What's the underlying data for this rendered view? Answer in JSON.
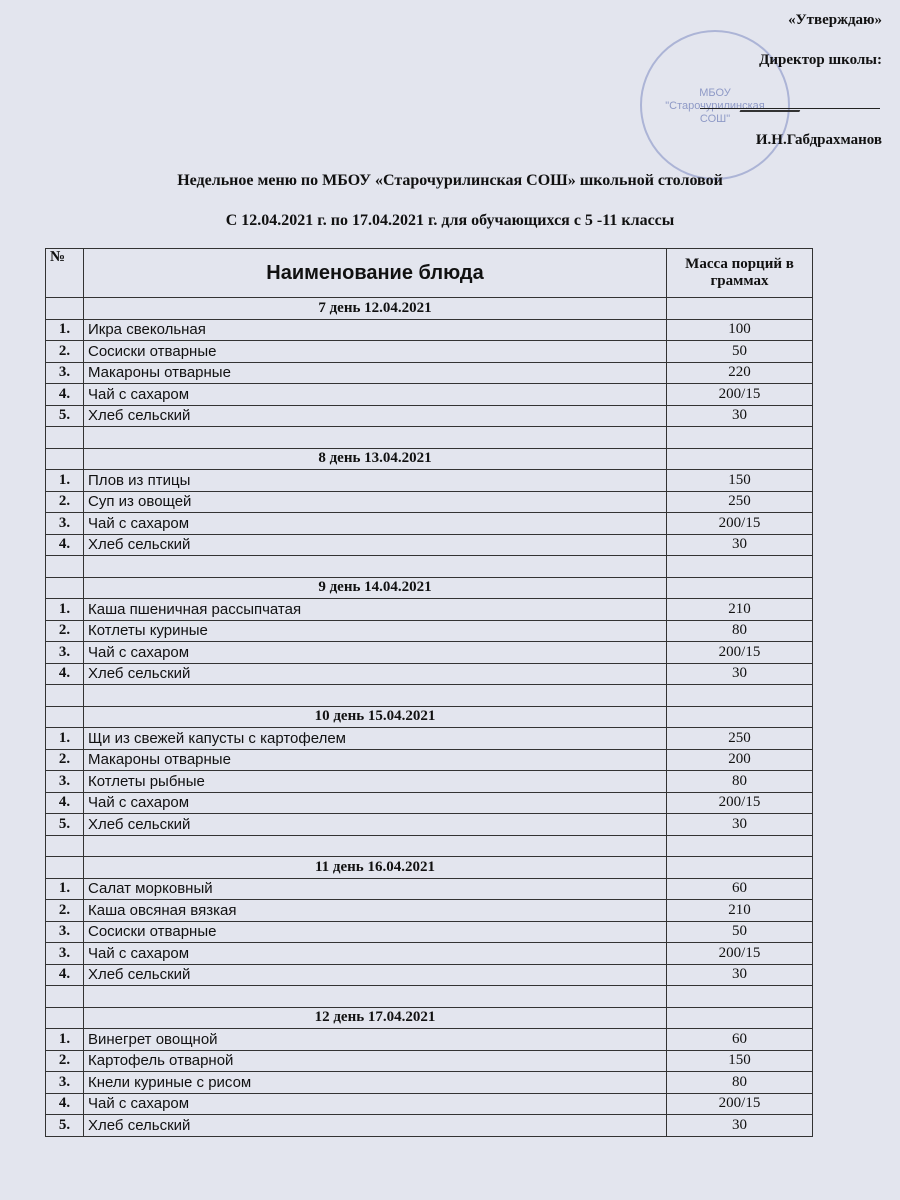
{
  "approval": {
    "title": "«Утверждаю»",
    "position": "Директор школы:",
    "name": "И.Н.Габдрахманов"
  },
  "stamp": {
    "lines": [
      "МБОУ",
      "\"Старочурилинская",
      "СОШ\""
    ]
  },
  "title": {
    "line1": "Недельное меню по МБОУ «Старочурилинская СОШ» школьной столовой",
    "line2": "С 12.04.2021 г. по 17.04.2021 г. для обучающихся с 5 -11 классы"
  },
  "table": {
    "header": [
      "№",
      "Наименование блюда",
      "Масса порций в граммах"
    ],
    "days": [
      {
        "title": "7 день 12.04.2021",
        "items": [
          {
            "num": "1.",
            "name": "Икра свекольная",
            "mass": "100"
          },
          {
            "num": "2.",
            "name": "Сосиски отварные",
            "mass": "50"
          },
          {
            "num": "3.",
            "name": "Макароны отварные",
            "mass": "220"
          },
          {
            "num": "4.",
            "name": "Чай с сахаром",
            "mass": "200/15"
          },
          {
            "num": "5.",
            "name": "Хлеб сельский",
            "mass": "30"
          }
        ]
      },
      {
        "title": "8 день 13.04.2021",
        "items": [
          {
            "num": "1.",
            "name": "Плов из птицы",
            "mass": "150"
          },
          {
            "num": "2.",
            "name": "Суп из овощей",
            "mass": "250"
          },
          {
            "num": "3.",
            "name": "Чай с сахаром",
            "mass": "200/15"
          },
          {
            "num": "4.",
            "name": "Хлеб сельский",
            "mass": "30"
          }
        ]
      },
      {
        "title": "9 день 14.04.2021",
        "items": [
          {
            "num": "1.",
            "name": "Каша пшеничная рассыпчатая",
            "mass": "210"
          },
          {
            "num": "2.",
            "name": "Котлеты куриные",
            "mass": "80"
          },
          {
            "num": "3.",
            "name": "Чай с сахаром",
            "mass": "200/15"
          },
          {
            "num": "4.",
            "name": "Хлеб сельский",
            "mass": "30"
          }
        ]
      },
      {
        "title": "10 день 15.04.2021",
        "items": [
          {
            "num": "1.",
            "name": "Щи из свежей капусты с картофелем",
            "mass": "250"
          },
          {
            "num": "2.",
            "name": "Макароны отварные",
            "mass": "200"
          },
          {
            "num": "3.",
            "name": "Котлеты рыбные",
            "mass": "80"
          },
          {
            "num": "4.",
            "name": "Чай с сахаром",
            "mass": "200/15"
          },
          {
            "num": "5.",
            "name": "Хлеб сельский",
            "mass": "30"
          }
        ]
      },
      {
        "title": "11 день 16.04.2021",
        "items": [
          {
            "num": "1.",
            "name": "Салат морковный",
            "mass": "60"
          },
          {
            "num": "2.",
            "name": "Каша овсяная вязкая",
            "mass": "210"
          },
          {
            "num": "3.",
            "name": "Сосиски отварные",
            "mass": "50"
          },
          {
            "num": "3.",
            "name": "Чай с сахаром",
            "mass": "200/15"
          },
          {
            "num": "4.",
            "name": "Хлеб сельский",
            "mass": "30"
          }
        ]
      },
      {
        "title": "12 день 17.04.2021",
        "items": [
          {
            "num": "1.",
            "name": "Винегрет овощной",
            "mass": "60"
          },
          {
            "num": "2.",
            "name": "Картофель отварной",
            "mass": "150"
          },
          {
            "num": "3.",
            "name": "Кнели куриные с рисом",
            "mass": "80"
          },
          {
            "num": "4.",
            "name": "Чай с сахаром",
            "mass": "200/15"
          },
          {
            "num": "5.",
            "name": "Хлеб сельский",
            "mass": "30"
          }
        ]
      }
    ]
  }
}
